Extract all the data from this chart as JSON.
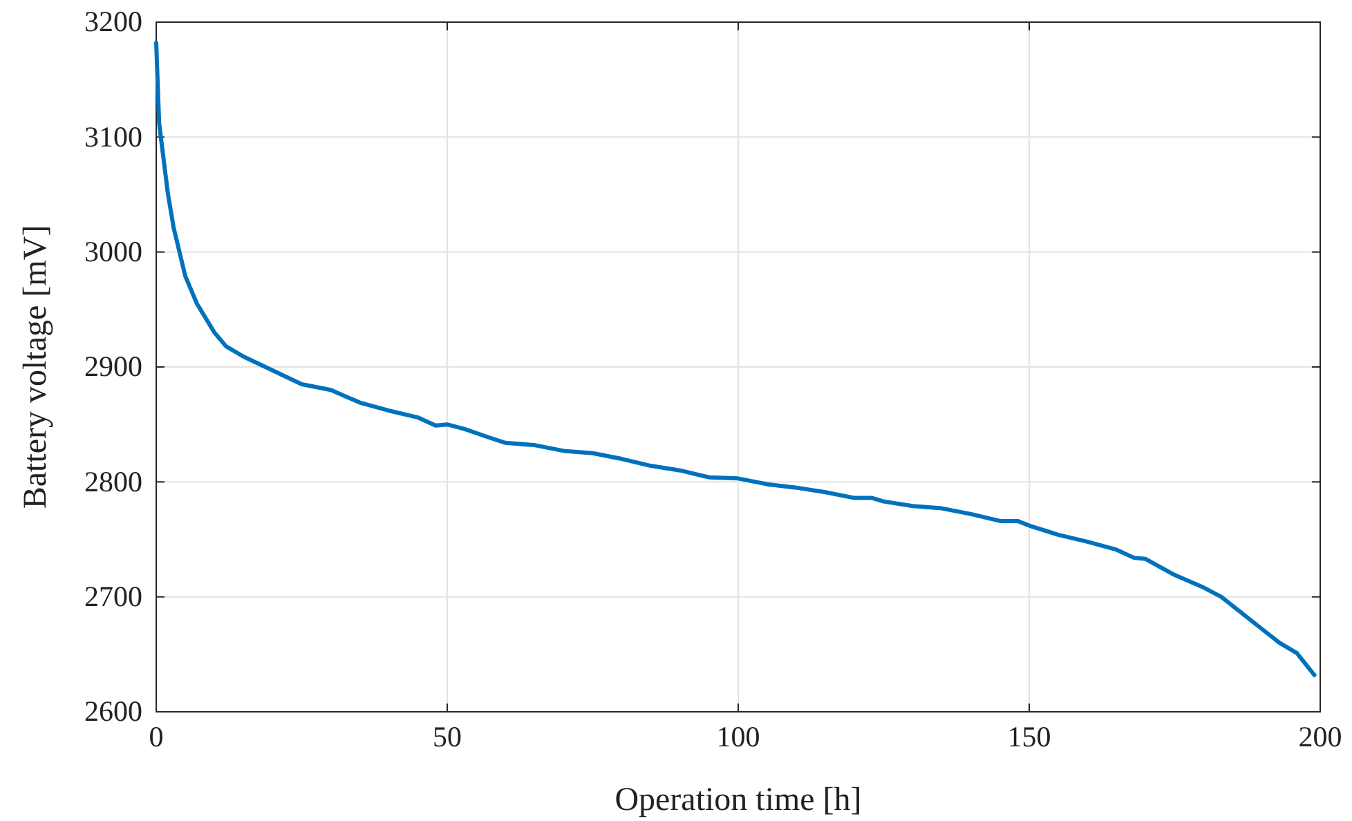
{
  "chart_data": {
    "type": "line",
    "xlabel": "Operation time [h]",
    "ylabel": "Battery voltage [mV]",
    "xlim": [
      0,
      200
    ],
    "xticks": [
      0,
      50,
      100,
      150,
      200
    ],
    "ylim": [
      2600,
      3200
    ],
    "yticks": [
      2600,
      2700,
      2800,
      2900,
      3000,
      3100,
      3200
    ],
    "grid": true,
    "x": [
      0,
      0.5,
      2,
      3,
      5,
      7,
      10,
      12,
      15,
      20,
      25,
      30,
      35,
      40,
      45,
      48,
      50,
      53,
      57,
      60,
      65,
      70,
      75,
      80,
      85,
      90,
      95,
      100,
      105,
      110,
      115,
      120,
      123,
      125,
      130,
      135,
      140,
      145,
      148,
      150,
      155,
      160,
      165,
      168,
      170,
      175,
      180,
      183,
      186,
      190,
      193,
      196,
      199
    ],
    "series": [
      {
        "color": "#0072bd",
        "values": [
          3182,
          3112,
          3051,
          3021,
          2979,
          2955,
          2930,
          2918,
          2909,
          2897,
          2885,
          2880,
          2869,
          2862,
          2856,
          2849,
          2850,
          2846,
          2839,
          2834,
          2832,
          2827,
          2825,
          2820,
          2814,
          2810,
          2804,
          2803,
          2798,
          2795,
          2791,
          2786,
          2786,
          2783,
          2779,
          2777,
          2772,
          2766,
          2766,
          2762,
          2754,
          2748,
          2741,
          2734,
          2733,
          2719,
          2708,
          2700,
          2688,
          2672,
          2660,
          2651,
          2632
        ]
      }
    ]
  }
}
